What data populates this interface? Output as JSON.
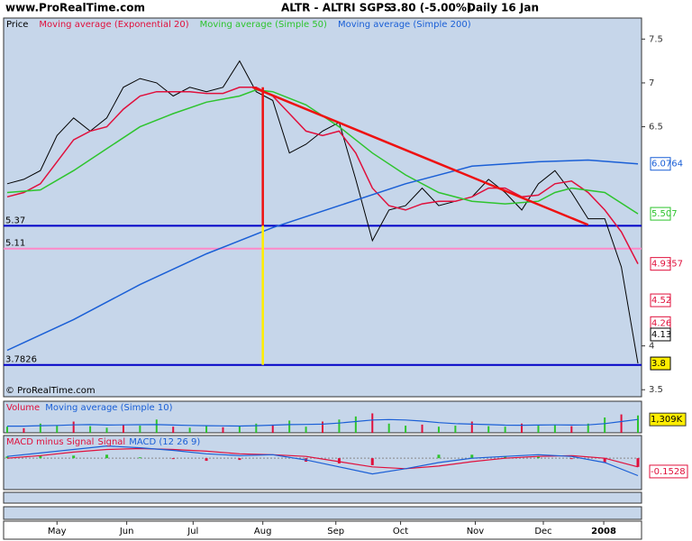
{
  "header": {
    "site": "www.ProRealTime.com",
    "title": "ALTR - ALTRI SGPS",
    "quote": "3.80 (-5.00%)",
    "period": "Daily",
    "date": "16 Jan"
  },
  "chart_data": [
    {
      "type": "line",
      "legend": "Price",
      "copyright": "© ProRealTime.com",
      "xlim": [
        0,
        190
      ],
      "xticks": [
        {
          "value": 15,
          "label": "May"
        },
        {
          "value": 36,
          "label": "Jun"
        },
        {
          "value": 56,
          "label": "Jul"
        },
        {
          "value": 77,
          "label": "Aug"
        },
        {
          "value": 99,
          "label": "Sep"
        },
        {
          "value": 118.5,
          "label": "Oct"
        },
        {
          "value": 141,
          "label": "Nov"
        },
        {
          "value": 161.5,
          "label": "Dec"
        },
        {
          "value": 179.7,
          "label": "2008"
        }
      ],
      "ylim": [
        3.42,
        7.74
      ],
      "yticks": [
        3.5,
        4,
        6.5,
        7,
        7.5
      ],
      "series": [
        {
          "name": "Price",
          "color": "#000000",
          "x": [
            0,
            5,
            10,
            15,
            20,
            25,
            30,
            35,
            40,
            45,
            50,
            55,
            60,
            65,
            70,
            75,
            80,
            85,
            90,
            95,
            100,
            105,
            110,
            115,
            120,
            125,
            130,
            135,
            140,
            145,
            150,
            155,
            160,
            165,
            170,
            175,
            180,
            185,
            190
          ],
          "values": [
            5.85,
            5.9,
            6.0,
            6.4,
            6.6,
            6.45,
            6.6,
            6.95,
            7.05,
            7.0,
            6.85,
            6.95,
            6.9,
            6.95,
            7.25,
            6.9,
            6.8,
            6.2,
            6.3,
            6.45,
            6.55,
            5.9,
            5.2,
            5.55,
            5.6,
            5.8,
            5.6,
            5.65,
            5.7,
            5.9,
            5.75,
            5.55,
            5.85,
            6.0,
            5.75,
            5.45,
            5.45,
            4.9,
            3.8
          ]
        },
        {
          "name": "Moving average (Exponential 20)",
          "color": "#e0103c",
          "x": [
            0,
            5,
            10,
            15,
            20,
            25,
            30,
            35,
            40,
            45,
            50,
            55,
            60,
            65,
            70,
            75,
            80,
            85,
            90,
            95,
            100,
            105,
            110,
            115,
            120,
            125,
            130,
            135,
            140,
            145,
            150,
            155,
            160,
            165,
            170,
            175,
            180,
            185,
            190
          ],
          "values": [
            5.7,
            5.75,
            5.85,
            6.1,
            6.35,
            6.45,
            6.5,
            6.7,
            6.85,
            6.9,
            6.9,
            6.9,
            6.88,
            6.88,
            6.95,
            6.95,
            6.85,
            6.65,
            6.45,
            6.4,
            6.45,
            6.2,
            5.8,
            5.6,
            5.55,
            5.62,
            5.65,
            5.65,
            5.7,
            5.8,
            5.8,
            5.7,
            5.72,
            5.85,
            5.88,
            5.75,
            5.55,
            5.3,
            4.9357
          ]
        },
        {
          "name": "Moving average (Simple 50)",
          "color": "#2ec42e",
          "x": [
            0,
            10,
            20,
            30,
            40,
            50,
            60,
            70,
            75,
            80,
            90,
            100,
            110,
            120,
            130,
            140,
            150,
            160,
            165,
            170,
            180,
            190
          ],
          "values": [
            5.75,
            5.78,
            6.0,
            6.25,
            6.5,
            6.65,
            6.78,
            6.85,
            6.92,
            6.9,
            6.75,
            6.5,
            6.2,
            5.95,
            5.75,
            5.65,
            5.62,
            5.65,
            5.75,
            5.8,
            5.75,
            5.507
          ]
        },
        {
          "name": "Moving average (Simple 200)",
          "color": "#1a5fd6",
          "x": [
            0,
            20,
            40,
            60,
            80,
            100,
            120,
            140,
            160,
            175,
            190
          ],
          "values": [
            3.95,
            4.3,
            4.7,
            5.05,
            5.35,
            5.6,
            5.85,
            6.05,
            6.1,
            6.12,
            6.0764
          ]
        }
      ],
      "levels": [
        {
          "value": 5.37,
          "color": "#0000c8"
        },
        {
          "value": 5.11,
          "color": "#ff88c8"
        },
        {
          "value": 3.7826,
          "color": "#0000c8"
        }
      ],
      "trendline": {
        "x": [
          74,
          175
        ],
        "values": [
          6.95,
          5.38
        ],
        "color": "#ee1111"
      },
      "verticals": [
        {
          "x": 77,
          "values": [
            6.95,
            5.37
          ],
          "color": "#ee1111"
        },
        {
          "x": 77,
          "values": [
            5.37,
            3.7826
          ],
          "color": "#ffee00"
        }
      ],
      "value_boxes": [
        {
          "value": 6.0764,
          "color": "#1a5fd6",
          "background": "#ffffff"
        },
        {
          "value": 5.507,
          "color": "#2ec42e",
          "background": "#ffffff"
        },
        {
          "value": 4.9357,
          "color": "#e0103c",
          "background": "#ffffff"
        },
        {
          "value": 4.52,
          "color": "#e0103c",
          "background": "#ffffff"
        },
        {
          "value": 4.26,
          "color": "#e0103c",
          "background": "#ffffff"
        },
        {
          "value": 4.13,
          "color": "#000000",
          "background": "#ffffff"
        },
        {
          "value": 3.8,
          "color": "#000000",
          "background": "#ffee00"
        }
      ]
    },
    {
      "type": "volume",
      "legend": [
        "Volume",
        "Moving average (Simple 10)"
      ],
      "ylim": [
        0,
        3000
      ],
      "series": [
        {
          "name": "Volume",
          "color": "#2ec42e",
          "x": [
            0,
            5,
            10,
            15,
            20,
            25,
            30,
            35,
            40,
            45,
            50,
            55,
            60,
            65,
            70,
            75,
            80,
            85,
            90,
            95,
            100,
            105,
            110,
            115,
            120,
            125,
            130,
            135,
            140,
            145,
            150,
            155,
            160,
            165,
            170,
            175,
            180,
            185,
            190
          ],
          "values": [
            600,
            450,
            900,
            700,
            1100,
            650,
            500,
            800,
            700,
            1300,
            600,
            500,
            700,
            550,
            650,
            900,
            800,
            1200,
            600,
            1100,
            1300,
            1600,
            1900,
            900,
            700,
            800,
            600,
            700,
            1100,
            650,
            600,
            900,
            700,
            800,
            650,
            900,
            1500,
            1800,
            1700
          ]
        },
        {
          "name": "Moving average (Simple 10)",
          "color": "#1a5fd6",
          "x": [
            0,
            5,
            10,
            15,
            20,
            25,
            30,
            35,
            40,
            45,
            50,
            55,
            60,
            65,
            70,
            75,
            80,
            85,
            90,
            95,
            100,
            105,
            110,
            115,
            120,
            125,
            130,
            135,
            140,
            145,
            150,
            155,
            160,
            165,
            170,
            175,
            180,
            185,
            190
          ],
          "values": [
            650,
            650,
            700,
            720,
            780,
            800,
            760,
            780,
            790,
            800,
            760,
            720,
            700,
            680,
            660,
            700,
            750,
            800,
            820,
            850,
            950,
            1100,
            1250,
            1300,
            1250,
            1150,
            1000,
            900,
            850,
            800,
            750,
            740,
            760,
            780,
            760,
            780,
            900,
            1100,
            1309
          ]
        }
      ],
      "value_box": {
        "value": 1309,
        "label": "1,309K"
      }
    },
    {
      "type": "macd",
      "legend": [
        "MACD minus Signal",
        "Signal",
        "MACD (12 26 9)"
      ],
      "ylim": [
        -0.35,
        0.25
      ],
      "x": [
        0,
        10,
        20,
        30,
        40,
        50,
        60,
        70,
        80,
        90,
        100,
        110,
        120,
        130,
        140,
        150,
        160,
        170,
        180,
        190
      ],
      "histogram": [
        0.02,
        0.03,
        0.03,
        0.04,
        0.01,
        -0.01,
        -0.03,
        -0.02,
        0,
        -0.04,
        -0.06,
        -0.08,
        0,
        0.04,
        0.04,
        0.02,
        0.02,
        -0.01,
        -0.05,
        -0.1
      ],
      "signal": [
        0.0,
        0.03,
        0.07,
        0.1,
        0.11,
        0.1,
        0.08,
        0.05,
        0.04,
        0.02,
        -0.04,
        -0.1,
        -0.12,
        -0.09,
        -0.04,
        0.0,
        0.02,
        0.03,
        0.0,
        -0.1
      ],
      "macd": [
        0.02,
        0.06,
        0.1,
        0.14,
        0.12,
        0.09,
        0.05,
        0.03,
        0.04,
        -0.02,
        -0.1,
        -0.18,
        -0.12,
        -0.05,
        0.0,
        0.02,
        0.04,
        0.02,
        -0.05,
        -0.2
      ],
      "value_box": -0.1528
    }
  ]
}
